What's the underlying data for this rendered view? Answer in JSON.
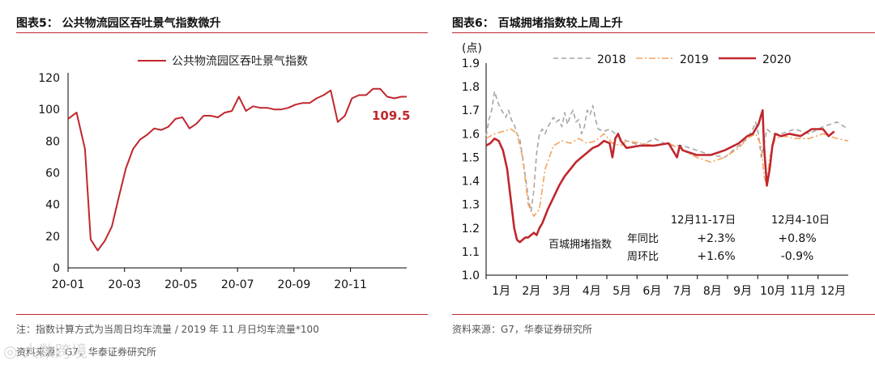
{
  "left": {
    "title": "图表5：  公共物流园区吞吐景气指数微升",
    "note": "注：指数计算方式为当周日均车流量 / 2019 年 11 月日均车流量*100",
    "source": "资料来源：G7，华泰证券研究所",
    "watermark": "大数跨境"
  },
  "right": {
    "title": "图表6：  百城拥堵指数较上周上升",
    "source": "资料来源：G7，华泰证券研究所"
  },
  "chart_data": [
    {
      "type": "line",
      "title": "公共物流园区吞吐景气指数微升",
      "series": [
        {
          "name": "公共物流园区吞吐景气指数",
          "color": "#c0272d",
          "x": [
            0,
            0.3,
            0.6,
            0.8,
            1.05,
            1.3,
            1.55,
            1.8,
            2.05,
            2.3,
            2.55,
            2.8,
            3.05,
            3.3,
            3.55,
            3.8,
            4.05,
            4.3,
            4.55,
            4.8,
            5.05,
            5.3,
            5.55,
            5.8,
            6.05,
            6.3,
            6.55,
            6.8,
            7.05,
            7.3,
            7.55,
            7.8,
            8.05,
            8.3,
            8.55,
            8.8,
            9.05,
            9.3,
            9.55,
            9.8,
            10.05,
            10.3,
            10.55,
            10.8,
            11.05,
            11.3,
            11.55,
            11.8,
            11.99
          ],
          "y": [
            94,
            98,
            75,
            18,
            11,
            17,
            26,
            45,
            63,
            75,
            81,
            84,
            88,
            87,
            89,
            94,
            95,
            88,
            91,
            96,
            96,
            95,
            98,
            99,
            108,
            99,
            102,
            101,
            101,
            100,
            100,
            101,
            103,
            104,
            104,
            107,
            109,
            112,
            92,
            96,
            107,
            109,
            109,
            113,
            113,
            108,
            107,
            108,
            108
          ]
        }
      ],
      "ylim": [
        0,
        120
      ],
      "yticks": [
        "0",
        "20",
        "40",
        "60",
        "80",
        "100",
        "120"
      ],
      "xticks": [
        "20-01",
        "20-03",
        "20-05",
        "20-07",
        "20-09",
        "20-11"
      ],
      "annotation": "109.5",
      "legend": "top-center"
    },
    {
      "type": "line",
      "title": "百城拥堵指数较上周上升",
      "ylabel": "(点)",
      "ylim": [
        1.0,
        1.9
      ],
      "yticks": [
        "1.0",
        "1.1",
        "1.2",
        "1.3",
        "1.4",
        "1.5",
        "1.6",
        "1.7",
        "1.8",
        "1.9"
      ],
      "xticks": [
        "1月",
        "2月",
        "3月",
        "4月",
        "5月",
        "6月",
        "7月",
        "8月",
        "9月",
        "10月",
        "11月",
        "12月"
      ],
      "series": [
        {
          "name": "2018",
          "color": "#a6a6a6",
          "dash": "dashed",
          "x": [
            0,
            0.1,
            0.2,
            0.3,
            0.4,
            0.5,
            0.6,
            0.7,
            0.8,
            0.9,
            1.0,
            1.1,
            1.2,
            1.3,
            1.4,
            1.5,
            1.6,
            1.7,
            1.8,
            1.9,
            2.0,
            2.1,
            2.2,
            2.3,
            2.4,
            2.5,
            2.6,
            2.7,
            2.8,
            2.9,
            3.0,
            3.1,
            3.2,
            3.3,
            3.4,
            3.5,
            3.6,
            3.7,
            3.8,
            3.9,
            4.0,
            4.2,
            4.4,
            4.6,
            4.8,
            5.0,
            5.5,
            6.0,
            6.5,
            7.0,
            7.5,
            8.0,
            8.5,
            9.0,
            9.3,
            9.5,
            9.6,
            9.7,
            9.8,
            9.9,
            10.0,
            10.2,
            10.5,
            11.0,
            11.5,
            12.0,
            12.5,
            12.9
          ],
          "y": [
            1.59,
            1.66,
            1.7,
            1.78,
            1.74,
            1.71,
            1.69,
            1.67,
            1.7,
            1.66,
            1.64,
            1.6,
            1.58,
            1.5,
            1.42,
            1.33,
            1.27,
            1.36,
            1.52,
            1.6,
            1.62,
            1.6,
            1.63,
            1.65,
            1.67,
            1.65,
            1.66,
            1.63,
            1.69,
            1.64,
            1.68,
            1.7,
            1.65,
            1.66,
            1.6,
            1.63,
            1.7,
            1.68,
            1.72,
            1.66,
            1.62,
            1.61,
            1.62,
            1.6,
            1.58,
            1.57,
            1.55,
            1.58,
            1.55,
            1.55,
            1.53,
            1.51,
            1.5,
            1.55,
            1.58,
            1.62,
            1.65,
            1.6,
            1.5,
            1.55,
            1.62,
            1.6,
            1.6,
            1.62,
            1.6,
            1.63,
            1.65,
            1.62
          ]
        },
        {
          "name": "2019",
          "color": "#f4a460",
          "dash": "dashdot",
          "x": [
            0,
            0.3,
            0.6,
            0.9,
            1.1,
            1.3,
            1.4,
            1.5,
            1.7,
            1.9,
            2.1,
            2.4,
            2.7,
            3.0,
            3.3,
            3.6,
            3.9,
            4.2,
            4.5,
            4.8,
            5.0,
            5.5,
            6.0,
            6.5,
            7.0,
            7.5,
            8.0,
            8.5,
            9.0,
            9.3,
            9.6,
            9.8,
            9.9,
            10.0,
            10.1,
            10.3,
            10.6,
            11.0,
            11.5,
            12.0,
            12.5,
            12.9
          ],
          "y": [
            1.58,
            1.6,
            1.61,
            1.62,
            1.6,
            1.5,
            1.4,
            1.3,
            1.25,
            1.28,
            1.45,
            1.55,
            1.57,
            1.56,
            1.58,
            1.56,
            1.57,
            1.6,
            1.56,
            1.55,
            1.57,
            1.56,
            1.55,
            1.56,
            1.53,
            1.5,
            1.48,
            1.5,
            1.54,
            1.58,
            1.6,
            1.55,
            1.42,
            1.38,
            1.5,
            1.58,
            1.59,
            1.58,
            1.58,
            1.6,
            1.58,
            1.57
          ]
        },
        {
          "name": "2020",
          "color": "#c0272d",
          "dash": "solid",
          "x": [
            0,
            0.15,
            0.3,
            0.45,
            0.6,
            0.75,
            0.9,
            1.0,
            1.1,
            1.2,
            1.3,
            1.4,
            1.5,
            1.6,
            1.7,
            1.8,
            1.9,
            2.0,
            2.2,
            2.4,
            2.6,
            2.8,
            3.0,
            3.2,
            3.4,
            3.6,
            3.8,
            4.0,
            4.2,
            4.4,
            4.5,
            4.6,
            4.7,
            4.8,
            5.0,
            5.5,
            6.0,
            6.5,
            6.8,
            6.9,
            7.0,
            7.5,
            8.0,
            8.5,
            9.0,
            9.3,
            9.5,
            9.7,
            9.8,
            9.85,
            9.9,
            10.0,
            10.1,
            10.2,
            10.3,
            10.5,
            10.8,
            11.2,
            11.6,
            12.0,
            12.2,
            12.4
          ],
          "y": [
            1.55,
            1.56,
            1.58,
            1.57,
            1.53,
            1.45,
            1.3,
            1.2,
            1.15,
            1.14,
            1.15,
            1.16,
            1.16,
            1.17,
            1.18,
            1.17,
            1.2,
            1.22,
            1.28,
            1.33,
            1.38,
            1.42,
            1.45,
            1.48,
            1.5,
            1.52,
            1.54,
            1.55,
            1.57,
            1.56,
            1.5,
            1.58,
            1.6,
            1.57,
            1.54,
            1.55,
            1.55,
            1.56,
            1.5,
            1.55,
            1.53,
            1.51,
            1.51,
            1.53,
            1.56,
            1.59,
            1.6,
            1.64,
            1.68,
            1.7,
            1.55,
            1.38,
            1.45,
            1.55,
            1.6,
            1.59,
            1.6,
            1.59,
            1.62,
            1.62,
            1.59,
            1.61
          ]
        }
      ],
      "table": {
        "headers": [
          "12月11-17日",
          "12月4-10日"
        ],
        "group_label": "百城拥堵指数",
        "rows": [
          {
            "label": "年同比",
            "values": [
              "+2.3%",
              "+0.8%"
            ]
          },
          {
            "label": "周环比",
            "values": [
              "+1.6%",
              "-0.9%"
            ]
          }
        ]
      },
      "legend": "top"
    }
  ]
}
